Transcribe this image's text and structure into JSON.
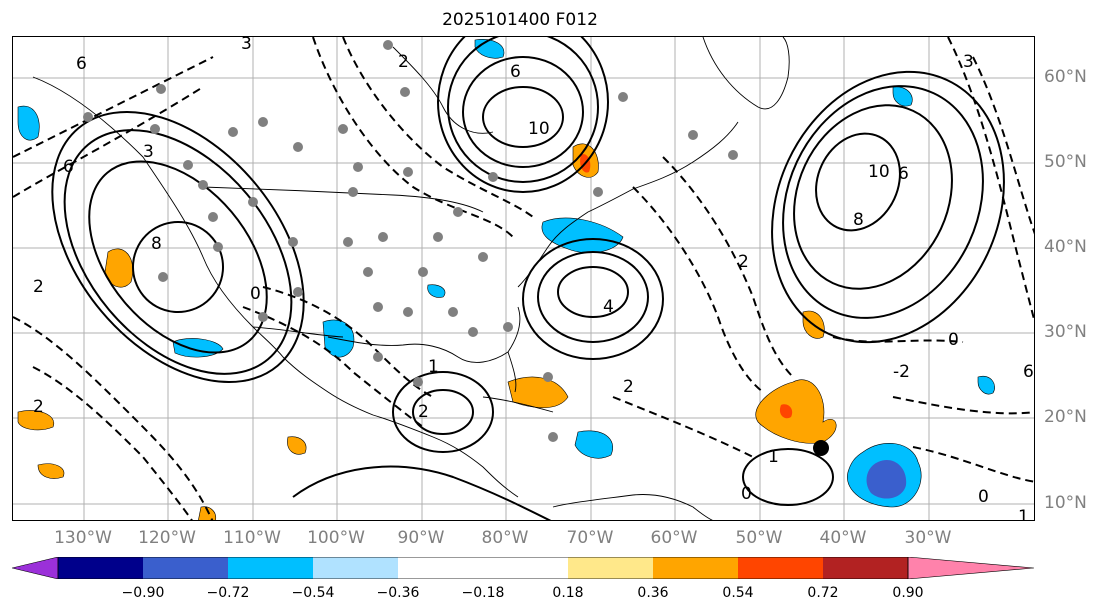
{
  "title": "2025101400 F012",
  "lon_labels": [
    "130°W",
    "120°W",
    "110°W",
    "100°W",
    "90°W",
    "80°W",
    "70°W",
    "60°W",
    "50°W",
    "40°W",
    "30°W"
  ],
  "lat_labels": [
    "60°N",
    "50°N",
    "40°N",
    "30°N",
    "20°N",
    "10°N"
  ],
  "colorbar": {
    "tick_labels": [
      "−0.90",
      "−0.72",
      "−0.54",
      "−0.36",
      "−0.18",
      "0.18",
      "0.36",
      "0.54",
      "0.72",
      "0.90"
    ],
    "colors": [
      "#9b30d9",
      "#00008b",
      "#3a5fcd",
      "#00bfff",
      "#b0e2ff",
      "#ffffff",
      "#ffe88a",
      "#ffa500",
      "#ff4500",
      "#b22222",
      "#ff82ab"
    ]
  },
  "contour_labels": [
    "6",
    "6",
    "6",
    "3",
    "3",
    "2",
    "8",
    "8",
    "10",
    "10",
    "6",
    "4",
    "2",
    "0",
    "0",
    "2",
    "2",
    "2",
    "1",
    "0",
    "1",
    "0",
    "2",
    "-2",
    "1",
    "3",
    "6"
  ],
  "marker_color": "#808080",
  "feature_colors": {
    "coast": "#000000",
    "grid": "#b0b0b0",
    "contour": "#000000"
  }
}
